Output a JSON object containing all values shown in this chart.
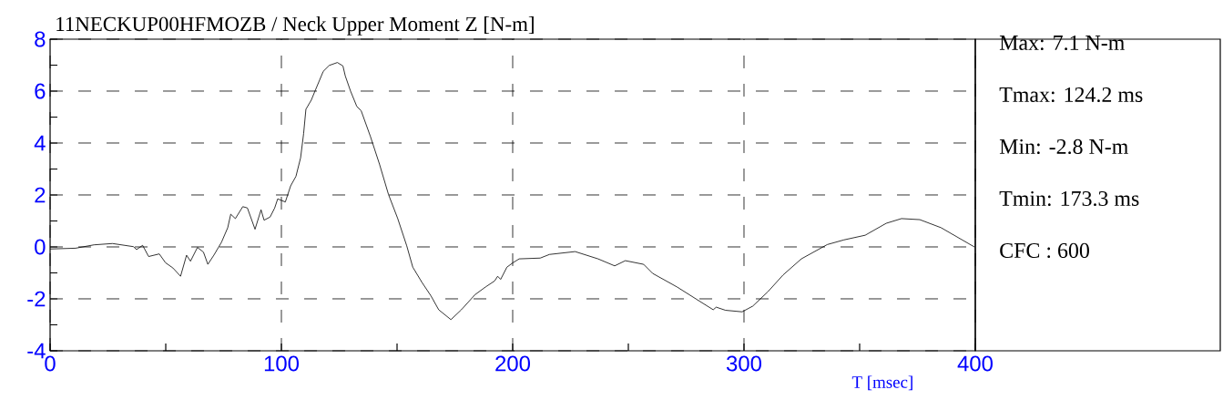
{
  "chart_data": {
    "type": "line",
    "title": "11NECKUP00HFMOZB / Neck Upper Moment Z [N-m]",
    "xlabel": "T [msec]",
    "x": [
      0,
      11,
      19,
      27,
      36,
      37.4,
      40,
      42.6,
      47.2,
      49.9,
      53.1,
      56.4,
      59,
      60.7,
      63.7,
      66.3,
      68.2,
      70.8,
      74.1,
      76.8,
      78.1,
      80.1,
      83.3,
      85.3,
      88.6,
      91.2,
      92.5,
      95.1,
      97.1,
      98.4,
      101.7,
      104,
      106.3,
      108.3,
      109.6,
      110.6,
      112.9,
      114.8,
      118.1,
      120.7,
      124.2,
      126.6,
      127.6,
      129.9,
      132.6,
      134.5,
      138.5,
      142.4,
      146.3,
      150.3,
      154.2,
      156.8,
      160.8,
      164.7,
      168,
      173.3,
      177.8,
      183.7,
      188.3,
      192.2,
      193.5,
      194.8,
      197.5,
      200.1,
      202.8,
      211.9,
      215.9,
      227,
      236.9,
      244.1,
      248.7,
      256.6,
      260.5,
      271,
      281.5,
      286.7,
      288,
      292,
      299.2,
      303.8,
      310.4,
      316.9,
      324.8,
      336,
      343.2,
      352.4,
      361.5,
      368.1,
      376,
      385.2,
      399.6
    ],
    "series": [
      {
        "color": "#000000",
        "values": [
          -0.08,
          -0.05,
          0.08,
          0.13,
          0.01,
          -0.1,
          0.06,
          -0.37,
          -0.27,
          -0.61,
          -0.81,
          -1.13,
          -0.32,
          -0.55,
          -0.02,
          -0.2,
          -0.67,
          -0.32,
          0.18,
          0.74,
          1.26,
          1.09,
          1.55,
          1.5,
          0.68,
          1.43,
          1.03,
          1.15,
          1.5,
          1.85,
          1.73,
          2.35,
          2.72,
          3.43,
          4.36,
          5.3,
          5.65,
          6.06,
          6.76,
          6.99,
          7.1,
          6.97,
          6.59,
          6.0,
          5.41,
          5.24,
          4.25,
          3.19,
          2.02,
          1.09,
          0.04,
          -0.78,
          -1.37,
          -1.89,
          -2.42,
          -2.8,
          -2.42,
          -1.84,
          -1.54,
          -1.31,
          -1.13,
          -1.25,
          -0.78,
          -0.61,
          -0.46,
          -0.43,
          -0.29,
          -0.18,
          -0.46,
          -0.73,
          -0.53,
          -0.67,
          -1.02,
          -1.54,
          -2.13,
          -2.42,
          -2.32,
          -2.44,
          -2.5,
          -2.28,
          -1.72,
          -1.08,
          -0.46,
          0.09,
          0.27,
          0.45,
          0.91,
          1.09,
          1.05,
          0.74,
          0.0
        ]
      }
    ],
    "xlim": [
      0,
      400
    ],
    "ylim": [
      -4,
      8
    ],
    "xticks": [
      0,
      100,
      200,
      300,
      400
    ],
    "yticks": [
      -4,
      -2,
      0,
      2,
      4,
      6,
      8
    ],
    "grid": true,
    "marker": "none",
    "line_style": "solid",
    "annotations": [
      "Max:    7.1 N-m",
      "Tmax: 124.2 ms",
      "Min:   -2.8 N-m",
      "Tmin: 173.3 ms",
      "CFC : 600"
    ]
  }
}
